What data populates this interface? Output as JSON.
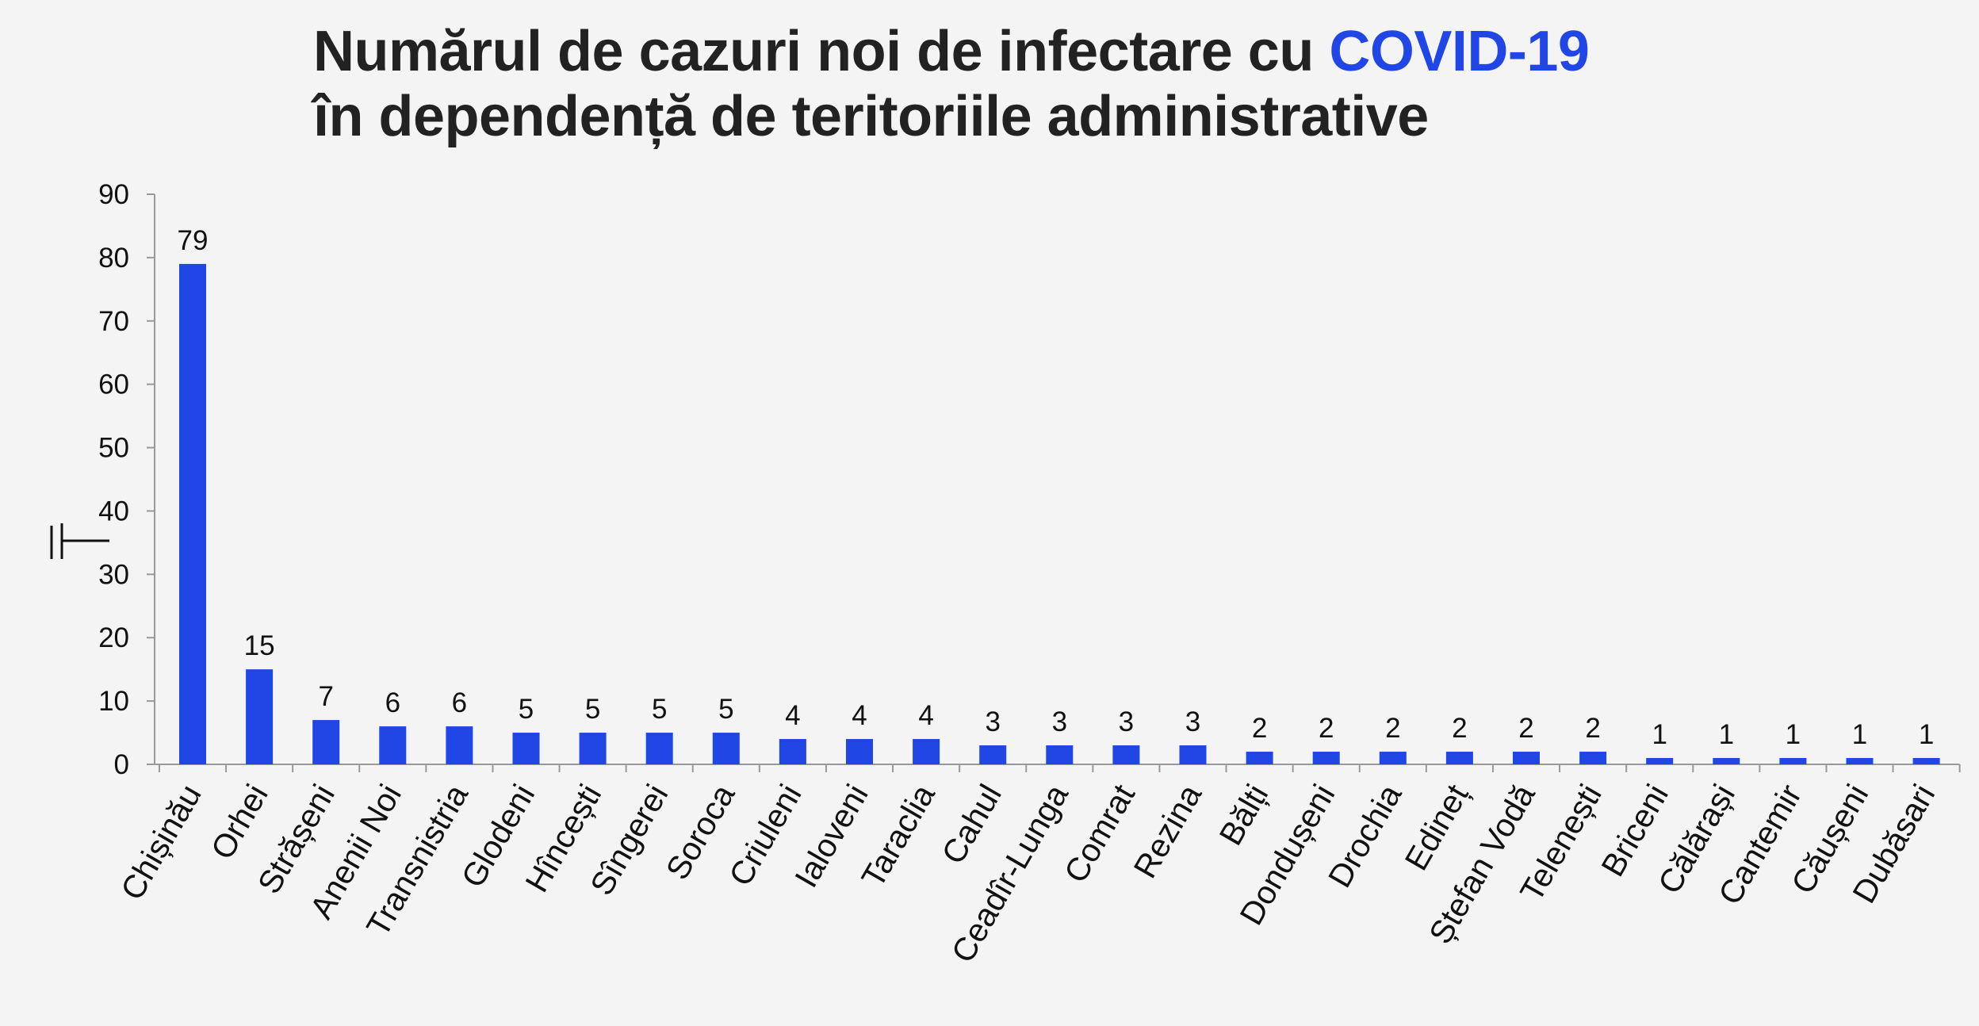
{
  "title": {
    "line1_prefix": "Numărul de cazuri noi de infectare cu ",
    "line1_accent": "COVID-19",
    "line2": "în dependență de teritoriile administrative"
  },
  "colors": {
    "bar": "#2146e6",
    "accent": "#2146e6",
    "axis": "#999999",
    "text": "#111111",
    "background": "#f4f4f4"
  },
  "chart_data": {
    "type": "bar",
    "ylabel": "",
    "xlabel": "",
    "ylim": [
      0,
      90
    ],
    "yticks": [
      "0",
      "10",
      "20",
      "30",
      "40",
      "50",
      "60",
      "70",
      "80",
      "90"
    ],
    "grid": false,
    "legend": "none",
    "data_labels": true,
    "categories": [
      "Chișinău",
      "Orhei",
      "Strășeni",
      "Anenii Noi",
      "Transnistria",
      "Glodeni",
      "Hîncești",
      "Sîngerei",
      "Soroca",
      "Criuleni",
      "Ialoveni",
      "Taraclia",
      "Cahul",
      "Ceadîr-Lunga",
      "Comrat",
      "Rezina",
      "Bălți",
      "Dondușeni",
      "Drochia",
      "Edineț",
      "Ștefan Vodă",
      "Telenești",
      "Briceni",
      "Călărași",
      "Cantemir",
      "Căușeni",
      "Dubăsari"
    ],
    "values": [
      79,
      15,
      7,
      6,
      6,
      5,
      5,
      5,
      5,
      4,
      4,
      4,
      3,
      3,
      3,
      3,
      2,
      2,
      2,
      2,
      2,
      2,
      1,
      1,
      1,
      1,
      1
    ]
  }
}
